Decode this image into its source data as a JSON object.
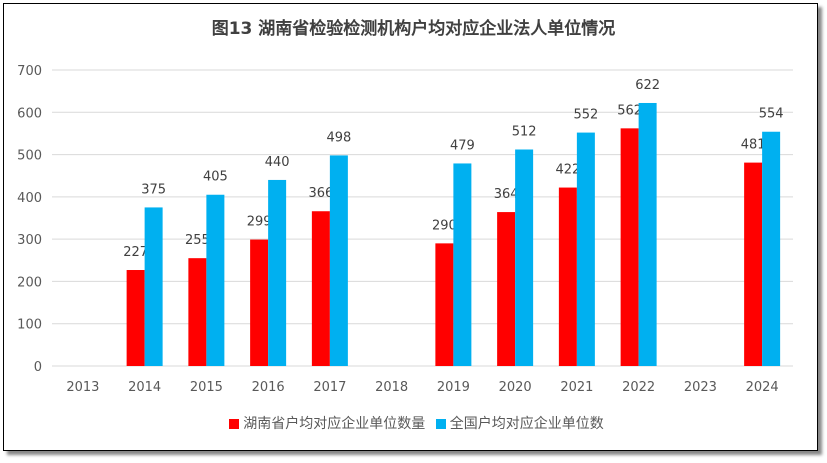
{
  "chart_data": {
    "type": "bar",
    "title": "图13  湖南省检验检测机构户均对应企业法人单位情况",
    "categories": [
      "2013",
      "2014",
      "2015",
      "2016",
      "2017",
      "2018",
      "2019",
      "2020",
      "2021",
      "2022",
      "2023",
      "2024"
    ],
    "series": [
      {
        "name": "湖南省户均对应企业单位数量",
        "color": "#FF0000",
        "values": [
          null,
          227,
          255,
          299,
          366,
          null,
          290,
          364,
          422,
          562,
          null,
          481
        ]
      },
      {
        "name": "全国户均对应企业单位数",
        "color": "#00B0F0",
        "values": [
          null,
          375,
          405,
          440,
          498,
          null,
          479,
          512,
          552,
          622,
          null,
          554
        ]
      }
    ],
    "ylim": [
      0,
      700
    ],
    "yticks": [
      0,
      100,
      200,
      300,
      400,
      500,
      600,
      700
    ],
    "grid": true,
    "legend": "bottom"
  }
}
